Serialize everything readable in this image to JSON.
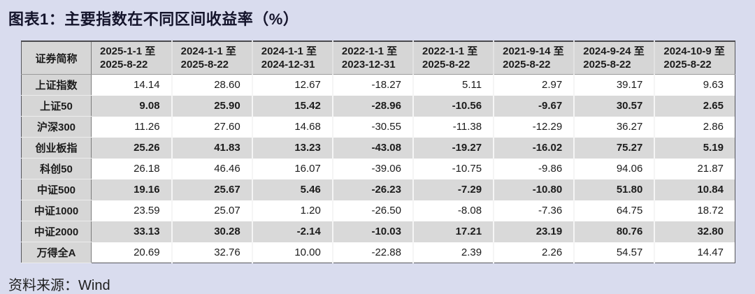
{
  "header": {
    "title": "图表1：主要指数在不同区间收益率（%）"
  },
  "footer": {
    "source": "资料来源：Wind"
  },
  "colors": {
    "page_bg": "#d9dcee",
    "title_text": "#14142b",
    "table_bg": "#ffffff",
    "table_border": "#55555a",
    "header_cell_bg": "#d6d6d6",
    "alt_row_bg": "#d9d9d9",
    "body_text": "#1c1c1c"
  },
  "chart_data": {
    "type": "table",
    "title": "图表1：主要指数在不同区间收益率（%）",
    "name_column_header": "证券简称",
    "range_joiner": "至",
    "period_columns": [
      {
        "from": "2025-1-1",
        "to": "2025-8-22"
      },
      {
        "from": "2024-1-1",
        "to": "2025-8-22"
      },
      {
        "from": "2024-1-1",
        "to": "2024-12-31"
      },
      {
        "from": "2022-1-1",
        "to": "2023-12-31"
      },
      {
        "from": "2022-1-1",
        "to": "2025-8-22"
      },
      {
        "from": "2021-9-14",
        "to": "2025-8-22"
      },
      {
        "from": "2024-9-24",
        "to": "2025-8-22"
      },
      {
        "from": "2024-10-9",
        "to": "2025-8-22"
      }
    ],
    "rows": [
      {
        "name": "上证指数",
        "values": [
          14.14,
          28.6,
          12.67,
          -18.27,
          5.11,
          2.97,
          39.17,
          9.63
        ]
      },
      {
        "name": "上证50",
        "values": [
          9.08,
          25.9,
          15.42,
          -28.96,
          -10.56,
          -9.67,
          30.57,
          2.65
        ]
      },
      {
        "name": "沪深300",
        "values": [
          11.26,
          27.6,
          14.68,
          -30.55,
          -11.38,
          -12.29,
          36.27,
          2.86
        ]
      },
      {
        "name": "创业板指",
        "values": [
          25.26,
          41.83,
          13.23,
          -43.08,
          -19.27,
          -16.02,
          75.27,
          5.19
        ]
      },
      {
        "name": "科创50",
        "values": [
          26.18,
          46.46,
          16.07,
          -39.06,
          -10.75,
          -9.86,
          94.06,
          21.87
        ]
      },
      {
        "name": "中证500",
        "values": [
          19.16,
          25.67,
          5.46,
          -26.23,
          -7.29,
          -10.8,
          51.8,
          10.84
        ]
      },
      {
        "name": "中证1000",
        "values": [
          23.59,
          25.07,
          1.2,
          -26.5,
          -8.08,
          -7.36,
          64.75,
          18.72
        ]
      },
      {
        "name": "中证2000",
        "values": [
          33.13,
          30.28,
          -2.14,
          -10.03,
          17.21,
          23.19,
          80.76,
          32.8
        ]
      },
      {
        "name": "万得全A",
        "values": [
          20.69,
          32.76,
          10.0,
          -22.88,
          2.39,
          2.26,
          54.57,
          14.47
        ]
      }
    ]
  }
}
